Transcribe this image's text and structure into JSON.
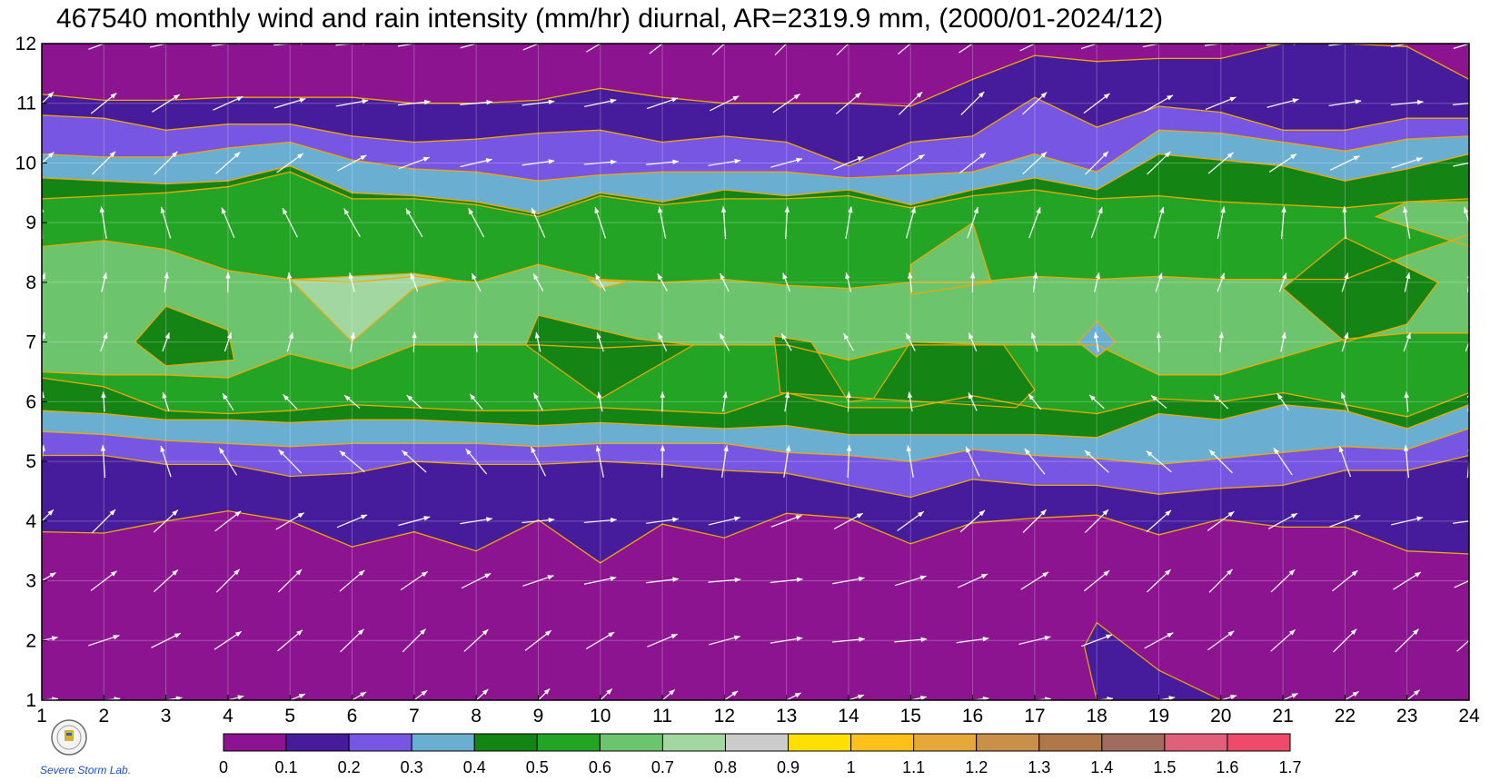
{
  "title": "467540 monthly wind and rain intensity (mm/hr) diurnal, AR=2319.9 mm, (2000/01-2024/12)",
  "logo": {
    "icon": "severe-storm-lab-logo",
    "text": "Severe Storm Lab."
  },
  "chart_data": {
    "type": "heatmap",
    "title": "467540 monthly wind and rain intensity (mm/hr) diurnal, AR=2319.9 mm, (2000/01-2024/12)",
    "xlabel": "",
    "ylabel": "",
    "x_ticks": [
      "1",
      "2",
      "3",
      "4",
      "5",
      "6",
      "7",
      "8",
      "9",
      "10",
      "11",
      "12",
      "13",
      "14",
      "15",
      "16",
      "17",
      "18",
      "19",
      "20",
      "21",
      "22",
      "23",
      "24"
    ],
    "y_ticks": [
      "1",
      "2",
      "3",
      "4",
      "5",
      "6",
      "7",
      "8",
      "9",
      "10",
      "11",
      "12"
    ],
    "xlim": [
      1,
      24
    ],
    "ylim": [
      1,
      12
    ],
    "grid": true,
    "colorbar": {
      "levels": [
        "0",
        "0.1",
        "0.2",
        "0.3",
        "0.4",
        "0.5",
        "0.6",
        "0.7",
        "0.8",
        "0.9",
        "1",
        "1.1",
        "1.2",
        "1.3",
        "1.4",
        "1.5",
        "1.6",
        "1.7"
      ],
      "colors": [
        "#8c1490",
        "#461c9c",
        "#7656e2",
        "#6aaed2",
        "#148414",
        "#24a424",
        "#6cc46c",
        "#a2d7a2",
        "#cccccc",
        "#ffe000",
        "#ffc01c",
        "#e6a838",
        "#c89048",
        "#b07848",
        "#a06c5e",
        "#e0607a",
        "#ee4a6a",
        "#d22846"
      ]
    },
    "contour_color": "#f0a800",
    "band_y_bounds": {
      "hours": [
        1,
        2,
        3,
        4,
        5,
        6,
        7,
        8,
        9,
        10,
        11,
        12,
        13,
        14,
        15,
        16,
        17,
        18,
        19,
        20,
        21,
        22,
        23,
        24
      ],
      "b01": [
        3.82,
        3.8,
        4.0,
        4.17,
        4.0,
        3.57,
        3.82,
        3.5,
        4.02,
        3.3,
        3.95,
        3.72,
        4.13,
        4.05,
        3.62,
        3.97,
        4.05,
        4.1,
        3.77,
        4.03,
        3.9,
        3.9,
        3.5,
        3.45
      ],
      "b12": [
        5.1,
        5.1,
        4.95,
        4.95,
        4.75,
        4.8,
        5.0,
        4.95,
        4.95,
        5.0,
        4.95,
        4.85,
        4.8,
        4.6,
        4.4,
        4.7,
        4.6,
        4.6,
        4.45,
        4.55,
        4.6,
        4.85,
        4.85,
        5.1
      ],
      "b23": [
        5.5,
        5.45,
        5.35,
        5.3,
        5.25,
        5.3,
        5.3,
        5.3,
        5.25,
        5.3,
        5.3,
        5.3,
        5.15,
        5.1,
        5.0,
        5.2,
        5.1,
        5.05,
        4.95,
        5.05,
        5.15,
        5.25,
        5.2,
        5.55
      ],
      "b34": [
        5.85,
        5.8,
        5.7,
        5.7,
        5.65,
        5.7,
        5.7,
        5.65,
        5.6,
        5.65,
        5.6,
        5.55,
        5.6,
        5.45,
        5.45,
        5.45,
        5.45,
        5.4,
        5.8,
        5.7,
        5.95,
        5.85,
        5.55,
        5.95
      ],
      "b45": [
        6.4,
        6.25,
        5.85,
        5.8,
        5.85,
        5.95,
        5.9,
        5.85,
        5.85,
        5.9,
        5.85,
        5.8,
        6.15,
        5.9,
        5.9,
        6.1,
        5.9,
        5.8,
        6.05,
        6.0,
        6.15,
        5.95,
        5.75,
        6.15
      ],
      "b56": [
        6.5,
        6.45,
        6.45,
        6.4,
        6.8,
        6.55,
        6.95,
        6.95,
        6.95,
        6.9,
        6.95,
        6.95,
        6.95,
        6.7,
        6.95,
        6.95,
        6.95,
        6.95,
        6.45,
        6.45,
        6.75,
        7.05,
        7.15,
        7.15
      ],
      "b67": [
        8.6,
        8.7,
        8.55,
        8.2,
        8.05,
        8.0,
        8.1,
        8.0,
        8.3,
        8.05,
        8.0,
        8.05,
        7.95,
        7.9,
        8.0,
        8.0,
        8.1,
        8.05,
        8.1,
        8.05,
        8.05,
        8.05,
        8.45,
        8.8
      ],
      "b56u": [
        9.4,
        9.45,
        9.5,
        9.6,
        9.85,
        9.4,
        9.4,
        9.3,
        9.1,
        9.45,
        9.3,
        9.4,
        9.4,
        9.45,
        9.25,
        9.45,
        9.55,
        9.4,
        9.45,
        9.35,
        9.3,
        9.25,
        9.35,
        9.4
      ],
      "b45u": [
        9.75,
        9.7,
        9.65,
        9.7,
        9.95,
        9.5,
        9.45,
        9.35,
        9.15,
        9.5,
        9.35,
        9.55,
        9.45,
        9.55,
        9.3,
        9.55,
        9.75,
        9.55,
        10.15,
        10.05,
        9.95,
        9.7,
        9.9,
        10.15
      ],
      "b34u": [
        10.15,
        10.1,
        10.1,
        10.25,
        10.35,
        10.05,
        9.9,
        9.85,
        9.7,
        9.8,
        9.85,
        9.85,
        9.85,
        9.75,
        9.8,
        9.85,
        10.15,
        9.85,
        10.55,
        10.5,
        10.35,
        10.2,
        10.4,
        10.45
      ],
      "b23u": [
        10.8,
        10.75,
        10.55,
        10.65,
        10.65,
        10.45,
        10.35,
        10.4,
        10.5,
        10.55,
        10.35,
        10.45,
        10.35,
        9.95,
        10.35,
        10.45,
        11.1,
        10.6,
        10.95,
        10.85,
        10.55,
        10.55,
        10.75,
        10.75
      ],
      "b12u": [
        11.15,
        11.05,
        11.05,
        11.1,
        11.1,
        11.1,
        11.0,
        11.0,
        11.05,
        11.25,
        11.1,
        11.0,
        11.0,
        11.0,
        10.95,
        11.4,
        11.8,
        11.7,
        11.75,
        11.75,
        12.0,
        12.0,
        11.95,
        11.4
      ]
    }
  }
}
